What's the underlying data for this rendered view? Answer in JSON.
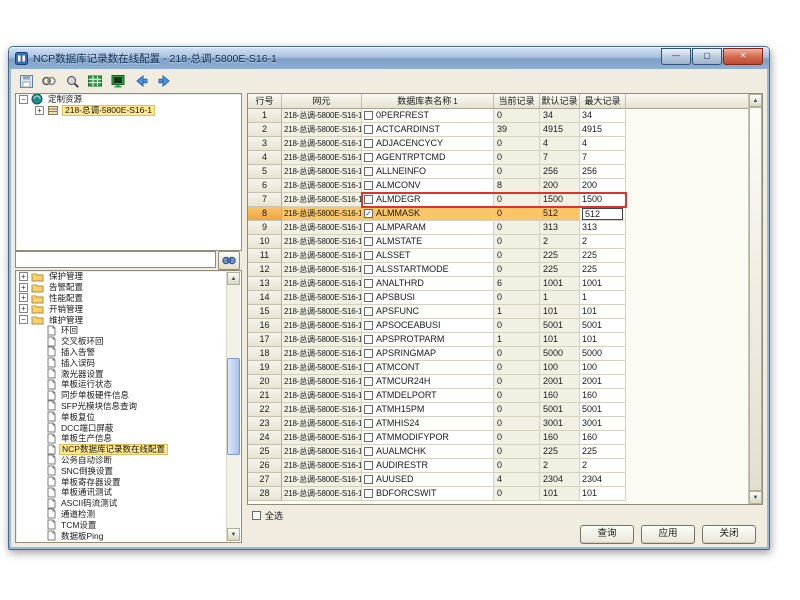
{
  "window": {
    "title": "NCP数据库记录数在线配置 - 218-总调-5800E-S16-1",
    "controls": [
      "minimize-icon",
      "maximize-icon",
      "close-icon"
    ]
  },
  "toolbar": {
    "icons": [
      "save-icon",
      "link-icon",
      "find-icon",
      "table-icon",
      "monitor-icon",
      "back-icon",
      "forward-icon"
    ]
  },
  "resource_tree": {
    "root_label": "定制资源",
    "child_label": "218-总调-5800E-S16-1",
    "child_selected": true
  },
  "search": {
    "value": "",
    "button_icon": "binoculars-icon"
  },
  "nav_tree": {
    "items": [
      {
        "label": "保护管理",
        "kind": "folder",
        "expander": "+"
      },
      {
        "label": "告警配置",
        "kind": "folder",
        "expander": "+"
      },
      {
        "label": "性能配置",
        "kind": "folder",
        "expander": "+"
      },
      {
        "label": "开销管理",
        "kind": "folder",
        "expander": "+"
      },
      {
        "label": "维护管理",
        "kind": "folder",
        "expander": "-"
      },
      {
        "label": "环回",
        "kind": "leaf"
      },
      {
        "label": "交叉板环回",
        "kind": "leaf"
      },
      {
        "label": "插入告警",
        "kind": "leaf"
      },
      {
        "label": "插入误码",
        "kind": "leaf"
      },
      {
        "label": "激光器设置",
        "kind": "leaf"
      },
      {
        "label": "单板运行状态",
        "kind": "leaf"
      },
      {
        "label": "同步单板硬件信息",
        "kind": "leaf"
      },
      {
        "label": "SFP光模块信息查询",
        "kind": "leaf"
      },
      {
        "label": "单板复位",
        "kind": "leaf"
      },
      {
        "label": "DCC端口屏蔽",
        "kind": "leaf"
      },
      {
        "label": "单板生产信息",
        "kind": "leaf"
      },
      {
        "label": "NCP数据库记录数在线配置",
        "kind": "leaf",
        "selected": true
      },
      {
        "label": "公务自动诊断",
        "kind": "leaf"
      },
      {
        "label": "SNC倒换设置",
        "kind": "leaf"
      },
      {
        "label": "单板寄存器设置",
        "kind": "leaf"
      },
      {
        "label": "单板通讯测试",
        "kind": "leaf"
      },
      {
        "label": "ASCII码流测试",
        "kind": "leaf"
      },
      {
        "label": "通道检测",
        "kind": "leaf"
      },
      {
        "label": "TCM设置",
        "kind": "leaf"
      },
      {
        "label": "数据板Ping",
        "kind": "leaf"
      }
    ]
  },
  "table": {
    "columns": [
      "行号",
      "网元",
      "数据库表名称",
      "当前记录",
      "默认记录",
      "最大记录"
    ],
    "sort_column": "数据库表名称",
    "sort_indicator": "1",
    "ne": "218-总调-5800E-S16-1",
    "selected_row": 8,
    "outlined_row": 7,
    "checked_rows": [
      8
    ],
    "editing": {
      "row": 8,
      "column": "最大记录",
      "value": "512"
    },
    "rows": [
      {
        "no": 1,
        "name": "0PERFREST",
        "cur": "0",
        "def": "34",
        "max": "34"
      },
      {
        "no": 2,
        "name": "ACTCARDINST",
        "cur": "39",
        "def": "4915",
        "max": "4915"
      },
      {
        "no": 3,
        "name": "ADJACENCYCY",
        "cur": "0",
        "def": "4",
        "max": "4"
      },
      {
        "no": 4,
        "name": "AGENTRPTCMD",
        "cur": "0",
        "def": "7",
        "max": "7"
      },
      {
        "no": 5,
        "name": "ALLNEINFO",
        "cur": "0",
        "def": "256",
        "max": "256"
      },
      {
        "no": 6,
        "name": "ALMCONV",
        "cur": "8",
        "def": "200",
        "max": "200"
      },
      {
        "no": 7,
        "name": "ALMDEGR",
        "cur": "0",
        "def": "1500",
        "max": "1500"
      },
      {
        "no": 8,
        "name": "ALMMASK",
        "cur": "0",
        "def": "512",
        "max": "512"
      },
      {
        "no": 9,
        "name": "ALMPARAM",
        "cur": "0",
        "def": "313",
        "max": "313"
      },
      {
        "no": 10,
        "name": "ALMSTATE",
        "cur": "0",
        "def": "2",
        "max": "2"
      },
      {
        "no": 11,
        "name": "ALSSET",
        "cur": "0",
        "def": "225",
        "max": "225"
      },
      {
        "no": 12,
        "name": "ALSSTARTMODE",
        "cur": "0",
        "def": "225",
        "max": "225"
      },
      {
        "no": 13,
        "name": "ANALTHRD",
        "cur": "6",
        "def": "1001",
        "max": "1001"
      },
      {
        "no": 14,
        "name": "APSBUSI",
        "cur": "0",
        "def": "1",
        "max": "1"
      },
      {
        "no": 15,
        "name": "APSFUNC",
        "cur": "1",
        "def": "101",
        "max": "101"
      },
      {
        "no": 16,
        "name": "APSOCEABUSI",
        "cur": "0",
        "def": "5001",
        "max": "5001"
      },
      {
        "no": 17,
        "name": "APSPROTPARM",
        "cur": "1",
        "def": "101",
        "max": "101"
      },
      {
        "no": 18,
        "name": "APSRINGMAP",
        "cur": "0",
        "def": "5000",
        "max": "5000"
      },
      {
        "no": 19,
        "name": "ATMCONT",
        "cur": "0",
        "def": "100",
        "max": "100"
      },
      {
        "no": 20,
        "name": "ATMCUR24H",
        "cur": "0",
        "def": "2001",
        "max": "2001"
      },
      {
        "no": 21,
        "name": "ATMDELPORT",
        "cur": "0",
        "def": "160",
        "max": "160"
      },
      {
        "no": 22,
        "name": "ATMH15PM",
        "cur": "0",
        "def": "5001",
        "max": "5001"
      },
      {
        "no": 23,
        "name": "ATMHIS24",
        "cur": "0",
        "def": "3001",
        "max": "3001"
      },
      {
        "no": 24,
        "name": "ATMMODIFYPOR",
        "cur": "0",
        "def": "160",
        "max": "160"
      },
      {
        "no": 25,
        "name": "AUALMCHK",
        "cur": "0",
        "def": "225",
        "max": "225"
      },
      {
        "no": 26,
        "name": "AUDIRESTR",
        "cur": "0",
        "def": "2",
        "max": "2"
      },
      {
        "no": 27,
        "name": "AUUSED",
        "cur": "4",
        "def": "2304",
        "max": "2304"
      },
      {
        "no": 28,
        "name": "BDFORCSWIT",
        "cur": "0",
        "def": "101",
        "max": "101"
      }
    ]
  },
  "footer": {
    "select_all_label": "全选",
    "buttons": [
      "查询",
      "应用",
      "关闭"
    ]
  },
  "colors": {
    "titlebar_blue": "#7e9fc6",
    "panel_beige": "#f0ede0",
    "tree_selection_yellow": "#ffe88f",
    "selected_row_orange": "#f8c667",
    "outline_red": "#e03131",
    "close_button_red": "#bf4a33"
  }
}
